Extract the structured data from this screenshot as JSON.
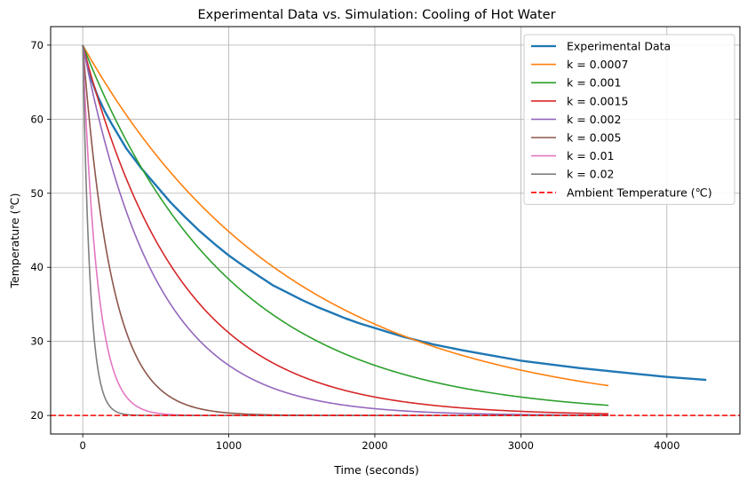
{
  "chart_data": {
    "type": "line",
    "title": "Experimental Data vs. Simulation: Cooling of Hot Water",
    "xlabel": "Time (seconds)",
    "ylabel": "Temperature (℃)",
    "xlim": [
      -220,
      4500
    ],
    "ylim": [
      17.5,
      72.5
    ],
    "xticks": [
      0,
      1000,
      2000,
      3000,
      4000
    ],
    "yticks": [
      20,
      30,
      40,
      50,
      60,
      70
    ],
    "grid": true,
    "legend_position": "top-right",
    "model": {
      "T0": 70,
      "T_ambient": 20,
      "t_end": 3600
    },
    "series": [
      {
        "name": "Experimental Data",
        "color": "#1f77b4",
        "kind": "experimental",
        "points": [
          [
            0,
            70
          ],
          [
            50,
            65.9
          ],
          [
            100,
            63.2
          ],
          [
            150,
            61.1
          ],
          [
            200,
            59.3
          ],
          [
            300,
            56
          ],
          [
            400,
            53.4
          ],
          [
            500,
            51.1
          ],
          [
            600,
            48.8
          ],
          [
            700,
            46.8
          ],
          [
            800,
            44.9
          ],
          [
            900,
            43.2
          ],
          [
            1000,
            41.6
          ],
          [
            1100,
            40.2
          ],
          [
            1200,
            38.9
          ],
          [
            1300,
            37.6
          ],
          [
            1400,
            36.6
          ],
          [
            1500,
            35.6
          ],
          [
            1600,
            34.7
          ],
          [
            1700,
            33.9
          ],
          [
            1800,
            33.1
          ],
          [
            1900,
            32.4
          ],
          [
            2000,
            31.8
          ],
          [
            2200,
            30.6
          ],
          [
            2400,
            29.6
          ],
          [
            2600,
            28.8
          ],
          [
            2800,
            28.1
          ],
          [
            3000,
            27.4
          ],
          [
            3200,
            26.9
          ],
          [
            3400,
            26.4
          ],
          [
            3600,
            26
          ],
          [
            3800,
            25.6
          ],
          [
            4000,
            25.2
          ],
          [
            4200,
            24.9
          ],
          [
            4270,
            24.8
          ]
        ]
      },
      {
        "name": "k = 0.0007",
        "color": "#ff7f0e",
        "k": 0.0007
      },
      {
        "name": "k = 0.001",
        "color": "#2ca02c",
        "k": 0.001
      },
      {
        "name": "k = 0.0015",
        "color": "#d62728",
        "k": 0.0015
      },
      {
        "name": "k = 0.002",
        "color": "#9467bd",
        "k": 0.002
      },
      {
        "name": "k = 0.005",
        "color": "#8c564b",
        "k": 0.005
      },
      {
        "name": "k = 0.01",
        "color": "#e377c2",
        "k": 0.01
      },
      {
        "name": "k = 0.02",
        "color": "#7f7f7f",
        "k": 0.02
      },
      {
        "name": "Ambient Temperature (℃)",
        "color": "#ff0000",
        "kind": "hline",
        "y": 20,
        "dashed": true
      }
    ]
  }
}
